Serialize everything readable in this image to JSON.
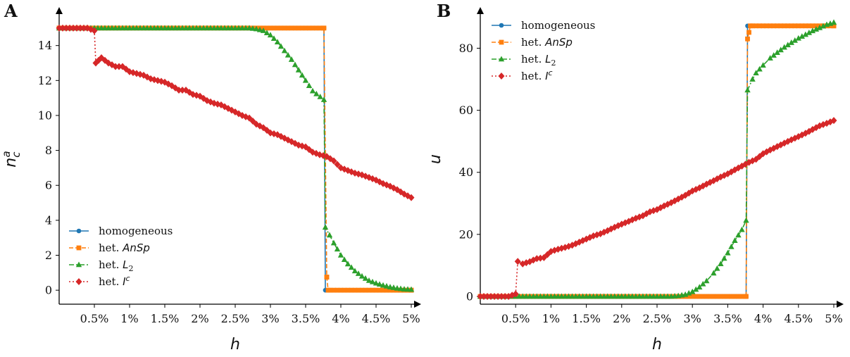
{
  "chart_data": [
    {
      "panel": "A",
      "type": "line",
      "xlabel": "h",
      "ylabel": "n_c^a",
      "xlim": [
        0,
        5
      ],
      "ylim": [
        -0.8,
        15.8
      ],
      "xticks": [
        {
          "v": 0.5,
          "label": "0.5%"
        },
        {
          "v": 1,
          "label": "1%"
        },
        {
          "v": 1.5,
          "label": "1.5%"
        },
        {
          "v": 2,
          "label": "2%"
        },
        {
          "v": 2.5,
          "label": "2.5%"
        },
        {
          "v": 3,
          "label": "3%"
        },
        {
          "v": 3.5,
          "label": "3.5%"
        },
        {
          "v": 4,
          "label": "4%"
        },
        {
          "v": 4.5,
          "label": "4.5%"
        },
        {
          "v": 5,
          "label": "5%"
        }
      ],
      "yticks": [
        {
          "v": 0,
          "label": "0"
        },
        {
          "v": 2,
          "label": "2"
        },
        {
          "v": 4,
          "label": "4"
        },
        {
          "v": 6,
          "label": "6"
        },
        {
          "v": 8,
          "label": "8"
        },
        {
          "v": 10,
          "label": "10"
        },
        {
          "v": 12,
          "label": "12"
        },
        {
          "v": 14,
          "label": "14"
        }
      ],
      "legend_position": "lower-left",
      "series": [
        {
          "name": "homogeneous",
          "color": "#1f77b4",
          "marker": "circle",
          "linestyle": "solid",
          "segments": [
            [
              0.0,
              15.0
            ],
            [
              3.76,
              15.0
            ],
            [
              3.76,
              15.0
            ],
            [
              3.78,
              0.0
            ],
            [
              5.0,
              0.0
            ]
          ]
        },
        {
          "name": "het. AnSp",
          "color": "#ff7f0e",
          "marker": "square",
          "linestyle": "dashed",
          "segments": [
            [
              0.0,
              15.0
            ],
            [
              3.76,
              15.0
            ],
            [
              3.8,
              0.75
            ],
            [
              3.82,
              0.0
            ],
            [
              5.0,
              0.0
            ]
          ]
        },
        {
          "name": "het. L_2",
          "color": "#2ca02c",
          "marker": "triangle",
          "linestyle": "dashdot",
          "points": [
            [
              0.0,
              15
            ],
            [
              0.5,
              15
            ],
            [
              1,
              15
            ],
            [
              1.5,
              15
            ],
            [
              2,
              15
            ],
            [
              2.5,
              15
            ],
            [
              2.7,
              15
            ],
            [
              2.8,
              14.95
            ],
            [
              2.9,
              14.85
            ],
            [
              3.0,
              14.6
            ],
            [
              3.1,
              14.2
            ],
            [
              3.2,
              13.7
            ],
            [
              3.3,
              13.2
            ],
            [
              3.4,
              12.6
            ],
            [
              3.5,
              12.0
            ],
            [
              3.6,
              11.4
            ],
            [
              3.76,
              10.9
            ],
            [
              3.78,
              3.6
            ],
            [
              3.9,
              2.7
            ],
            [
              4.0,
              2.0
            ],
            [
              4.1,
              1.5
            ],
            [
              4.2,
              1.1
            ],
            [
              4.3,
              0.8
            ],
            [
              4.4,
              0.55
            ],
            [
              4.5,
              0.4
            ],
            [
              4.6,
              0.28
            ],
            [
              4.7,
              0.18
            ],
            [
              4.8,
              0.11
            ],
            [
              4.9,
              0.06
            ],
            [
              5.0,
              0.04
            ]
          ]
        },
        {
          "name": "het. I^c",
          "color": "#d62728",
          "marker": "diamond",
          "linestyle": "dotted",
          "points": [
            [
              0.0,
              15
            ],
            [
              0.1,
              15
            ],
            [
              0.2,
              15
            ],
            [
              0.3,
              15
            ],
            [
              0.4,
              15
            ],
            [
              0.5,
              14.85
            ],
            [
              0.52,
              13.0
            ],
            [
              0.6,
              13.3
            ],
            [
              0.7,
              13.0
            ],
            [
              0.8,
              12.8
            ],
            [
              0.9,
              12.8
            ],
            [
              1.0,
              12.5
            ],
            [
              1.1,
              12.4
            ],
            [
              1.2,
              12.3
            ],
            [
              1.3,
              12.1
            ],
            [
              1.4,
              12.0
            ],
            [
              1.5,
              11.9
            ],
            [
              1.6,
              11.7
            ],
            [
              1.7,
              11.45
            ],
            [
              1.8,
              11.45
            ],
            [
              1.9,
              11.2
            ],
            [
              2.0,
              11.1
            ],
            [
              2.1,
              10.85
            ],
            [
              2.2,
              10.7
            ],
            [
              2.3,
              10.6
            ],
            [
              2.4,
              10.4
            ],
            [
              2.5,
              10.2
            ],
            [
              2.6,
              10.0
            ],
            [
              2.7,
              9.85
            ],
            [
              2.8,
              9.5
            ],
            [
              2.9,
              9.3
            ],
            [
              3.0,
              9.0
            ],
            [
              3.1,
              8.9
            ],
            [
              3.2,
              8.7
            ],
            [
              3.3,
              8.5
            ],
            [
              3.4,
              8.3
            ],
            [
              3.5,
              8.2
            ],
            [
              3.6,
              7.9
            ],
            [
              3.7,
              7.75
            ],
            [
              3.8,
              7.65
            ],
            [
              3.9,
              7.4
            ],
            [
              4.0,
              7.0
            ],
            [
              4.1,
              6.85
            ],
            [
              4.2,
              6.7
            ],
            [
              4.3,
              6.6
            ],
            [
              4.4,
              6.45
            ],
            [
              4.5,
              6.3
            ],
            [
              4.6,
              6.1
            ],
            [
              4.7,
              5.95
            ],
            [
              4.8,
              5.75
            ],
            [
              4.9,
              5.5
            ],
            [
              5.0,
              5.3
            ]
          ]
        }
      ]
    },
    {
      "panel": "B",
      "type": "line",
      "xlabel": "h",
      "ylabel": "u",
      "xlim": [
        0,
        5
      ],
      "ylim": [
        -2.5,
        91
      ],
      "xticks": [
        {
          "v": 0.5,
          "label": "0.5%"
        },
        {
          "v": 1,
          "label": "1%"
        },
        {
          "v": 1.5,
          "label": "1.5%"
        },
        {
          "v": 2,
          "label": "2%"
        },
        {
          "v": 2.5,
          "label": "2.5%"
        },
        {
          "v": 3,
          "label": "3%"
        },
        {
          "v": 3.5,
          "label": "3.5%"
        },
        {
          "v": 4,
          "label": "4%"
        },
        {
          "v": 4.5,
          "label": "4.5%"
        },
        {
          "v": 5,
          "label": "5%"
        }
      ],
      "yticks": [
        {
          "v": 0,
          "label": "0"
        },
        {
          "v": 20,
          "label": "20"
        },
        {
          "v": 40,
          "label": "40"
        },
        {
          "v": 60,
          "label": "60"
        },
        {
          "v": 80,
          "label": "80"
        }
      ],
      "legend_position": "upper-left",
      "series": [
        {
          "name": "homogeneous",
          "color": "#1f77b4",
          "marker": "circle",
          "linestyle": "solid",
          "segments": [
            [
              0.0,
              0.0
            ],
            [
              3.76,
              0.0
            ],
            [
              3.78,
              87.2
            ],
            [
              5.0,
              87.2
            ]
          ]
        },
        {
          "name": "het. AnSp",
          "color": "#ff7f0e",
          "marker": "square",
          "linestyle": "dashed",
          "segments": [
            [
              0.0,
              0.0
            ],
            [
              3.76,
              0.0
            ],
            [
              3.78,
              83.0
            ],
            [
              3.82,
              87.2
            ],
            [
              5.0,
              87.2
            ]
          ]
        },
        {
          "name": "het. L_2",
          "color": "#2ca02c",
          "marker": "triangle",
          "linestyle": "dashdot",
          "points": [
            [
              0.0,
              0
            ],
            [
              0.5,
              0
            ],
            [
              1,
              0
            ],
            [
              1.5,
              0
            ],
            [
              2,
              0
            ],
            [
              2.5,
              0
            ],
            [
              2.7,
              0
            ],
            [
              2.8,
              0.2
            ],
            [
              2.9,
              0.6
            ],
            [
              3.0,
              1.5
            ],
            [
              3.1,
              3.0
            ],
            [
              3.2,
              5.0
            ],
            [
              3.3,
              7.5
            ],
            [
              3.4,
              10.5
            ],
            [
              3.5,
              14.0
            ],
            [
              3.6,
              18.0
            ],
            [
              3.7,
              21.5
            ],
            [
              3.76,
              24.5
            ],
            [
              3.78,
              66.5
            ],
            [
              3.85,
              70.0
            ],
            [
              3.9,
              72.0
            ],
            [
              4.0,
              74.5
            ],
            [
              4.1,
              76.8
            ],
            [
              4.2,
              78.6
            ],
            [
              4.3,
              80.3
            ],
            [
              4.4,
              81.8
            ],
            [
              4.5,
              83.2
            ],
            [
              4.6,
              84.4
            ],
            [
              4.7,
              85.6
            ],
            [
              4.8,
              86.6
            ],
            [
              4.9,
              87.6
            ],
            [
              5.0,
              88.3
            ]
          ]
        },
        {
          "name": "het. I^c",
          "color": "#d62728",
          "marker": "diamond",
          "linestyle": "dotted",
          "points": [
            [
              0.0,
              0
            ],
            [
              0.1,
              0
            ],
            [
              0.2,
              0
            ],
            [
              0.3,
              0
            ],
            [
              0.4,
              0
            ],
            [
              0.5,
              0.8
            ],
            [
              0.53,
              11.3
            ],
            [
              0.6,
              10.5
            ],
            [
              0.7,
              11.2
            ],
            [
              0.8,
              12.2
            ],
            [
              0.9,
              12.5
            ],
            [
              1.0,
              14.5
            ],
            [
              1.1,
              15.2
            ],
            [
              1.2,
              15.8
            ],
            [
              1.3,
              16.5
            ],
            [
              1.4,
              17.5
            ],
            [
              1.5,
              18.5
            ],
            [
              1.6,
              19.5
            ],
            [
              1.7,
              20.2
            ],
            [
              1.8,
              21.2
            ],
            [
              1.9,
              22.3
            ],
            [
              2.0,
              23.3
            ],
            [
              2.1,
              24.2
            ],
            [
              2.2,
              25.2
            ],
            [
              2.3,
              26.0
            ],
            [
              2.4,
              27.3
            ],
            [
              2.5,
              28.0
            ],
            [
              2.6,
              29.2
            ],
            [
              2.7,
              30.2
            ],
            [
              2.8,
              31.4
            ],
            [
              2.9,
              32.6
            ],
            [
              3.0,
              34.0
            ],
            [
              3.1,
              35.0
            ],
            [
              3.2,
              36.2
            ],
            [
              3.3,
              37.3
            ],
            [
              3.4,
              38.5
            ],
            [
              3.5,
              39.5
            ],
            [
              3.6,
              40.8
            ],
            [
              3.7,
              42.0
            ],
            [
              3.8,
              43.2
            ],
            [
              3.9,
              44.2
            ],
            [
              4.0,
              46.0
            ],
            [
              4.1,
              47.2
            ],
            [
              4.2,
              48.3
            ],
            [
              4.3,
              49.4
            ],
            [
              4.4,
              50.5
            ],
            [
              4.5,
              51.5
            ],
            [
              4.6,
              52.6
            ],
            [
              4.7,
              53.8
            ],
            [
              4.8,
              55.0
            ],
            [
              4.9,
              55.8
            ],
            [
              5.0,
              56.7
            ]
          ]
        }
      ]
    }
  ]
}
